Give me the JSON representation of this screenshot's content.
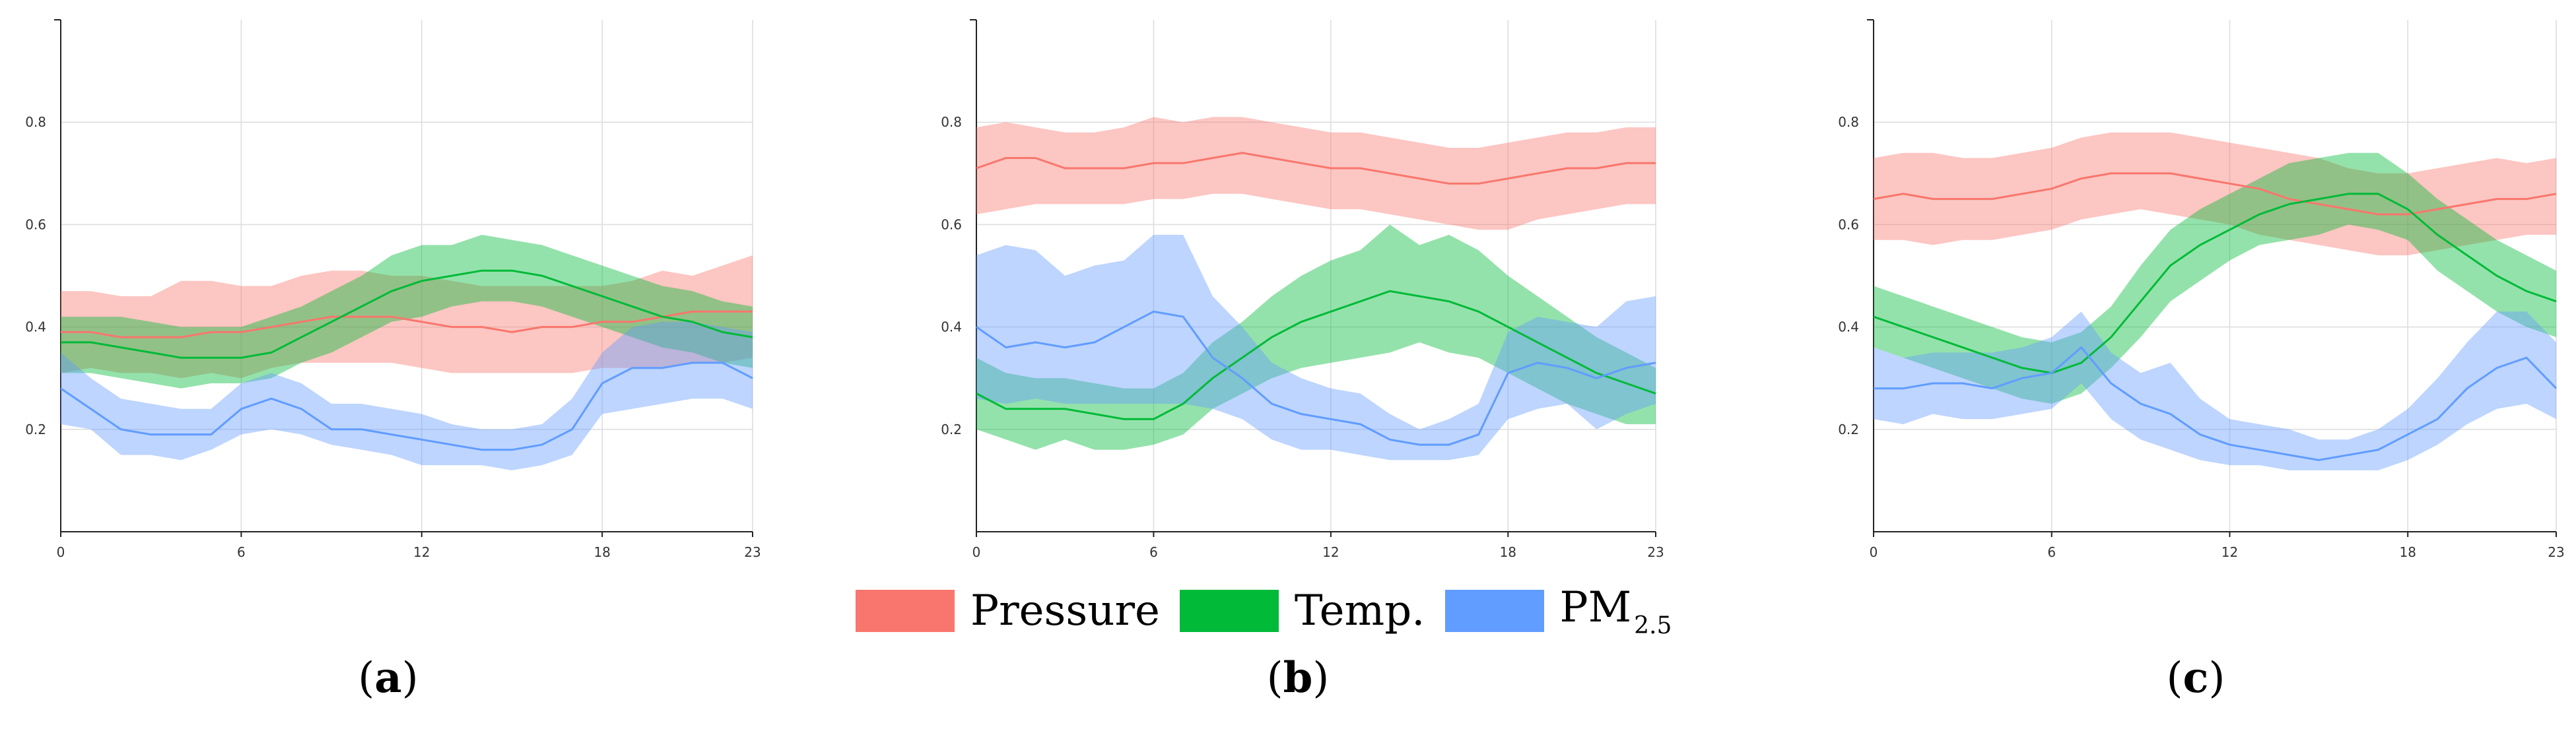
{
  "legend": {
    "pressure": {
      "label": "Pressure",
      "color": "#f8766d"
    },
    "temp": {
      "label": "Temp.",
      "color": "#00ba38"
    },
    "pm": {
      "label": "PM",
      "subscript": "2.5",
      "color": "#619cff"
    }
  },
  "chart_data": [
    {
      "type": "line",
      "panel_label": "a",
      "x": [
        0,
        1,
        2,
        3,
        4,
        5,
        6,
        7,
        8,
        9,
        10,
        11,
        12,
        13,
        14,
        15,
        16,
        17,
        18,
        19,
        20,
        21,
        22,
        23
      ],
      "xticks": [
        "0",
        "6",
        "12",
        "18",
        "23"
      ],
      "yticks": [
        "0.2",
        "0.4",
        "0.6",
        "0.8"
      ],
      "xlim": [
        0,
        23
      ],
      "ylim": [
        0,
        1
      ],
      "grid": true,
      "series": [
        {
          "name": "Pressure",
          "values": [
            0.39,
            0.39,
            0.38,
            0.38,
            0.38,
            0.39,
            0.39,
            0.4,
            0.41,
            0.42,
            0.42,
            0.42,
            0.41,
            0.4,
            0.4,
            0.39,
            0.4,
            0.4,
            0.41,
            0.41,
            0.42,
            0.43,
            0.43,
            0.43
          ],
          "lower": [
            0.31,
            0.32,
            0.31,
            0.31,
            0.3,
            0.31,
            0.3,
            0.32,
            0.33,
            0.33,
            0.33,
            0.33,
            0.32,
            0.31,
            0.31,
            0.31,
            0.31,
            0.31,
            0.32,
            0.32,
            0.32,
            0.33,
            0.33,
            0.34
          ],
          "upper": [
            0.47,
            0.47,
            0.46,
            0.46,
            0.49,
            0.49,
            0.48,
            0.48,
            0.5,
            0.51,
            0.51,
            0.5,
            0.5,
            0.49,
            0.48,
            0.48,
            0.48,
            0.48,
            0.48,
            0.49,
            0.51,
            0.5,
            0.52,
            0.54
          ]
        },
        {
          "name": "Temp.",
          "values": [
            0.37,
            0.37,
            0.36,
            0.35,
            0.34,
            0.34,
            0.34,
            0.35,
            0.38,
            0.41,
            0.44,
            0.47,
            0.49,
            0.5,
            0.51,
            0.51,
            0.5,
            0.48,
            0.46,
            0.44,
            0.42,
            0.41,
            0.39,
            0.38
          ],
          "lower": [
            0.31,
            0.31,
            0.3,
            0.29,
            0.28,
            0.29,
            0.29,
            0.3,
            0.33,
            0.35,
            0.38,
            0.41,
            0.42,
            0.44,
            0.45,
            0.45,
            0.44,
            0.42,
            0.4,
            0.38,
            0.36,
            0.35,
            0.33,
            0.32
          ],
          "upper": [
            0.42,
            0.42,
            0.42,
            0.41,
            0.4,
            0.4,
            0.4,
            0.42,
            0.44,
            0.47,
            0.5,
            0.54,
            0.56,
            0.56,
            0.58,
            0.57,
            0.56,
            0.54,
            0.52,
            0.5,
            0.48,
            0.47,
            0.45,
            0.44
          ]
        },
        {
          "name": "PM2.5",
          "values": [
            0.28,
            0.24,
            0.2,
            0.19,
            0.19,
            0.19,
            0.24,
            0.26,
            0.24,
            0.2,
            0.2,
            0.19,
            0.18,
            0.17,
            0.16,
            0.16,
            0.17,
            0.2,
            0.29,
            0.32,
            0.32,
            0.33,
            0.33,
            0.3
          ],
          "lower": [
            0.21,
            0.2,
            0.15,
            0.15,
            0.14,
            0.16,
            0.19,
            0.2,
            0.19,
            0.17,
            0.16,
            0.15,
            0.13,
            0.13,
            0.13,
            0.12,
            0.13,
            0.15,
            0.23,
            0.24,
            0.25,
            0.26,
            0.26,
            0.24
          ],
          "upper": [
            0.35,
            0.3,
            0.26,
            0.25,
            0.24,
            0.24,
            0.29,
            0.31,
            0.29,
            0.25,
            0.25,
            0.24,
            0.23,
            0.21,
            0.2,
            0.2,
            0.21,
            0.26,
            0.35,
            0.4,
            0.41,
            0.41,
            0.4,
            0.39
          ]
        }
      ]
    },
    {
      "type": "line",
      "panel_label": "b",
      "x": [
        0,
        1,
        2,
        3,
        4,
        5,
        6,
        7,
        8,
        9,
        10,
        11,
        12,
        13,
        14,
        15,
        16,
        17,
        18,
        19,
        20,
        21,
        22,
        23
      ],
      "xticks": [
        "0",
        "6",
        "12",
        "18",
        "23"
      ],
      "yticks": [
        "0.2",
        "0.4",
        "0.6",
        "0.8"
      ],
      "xlim": [
        0,
        23
      ],
      "ylim": [
        0,
        1
      ],
      "grid": true,
      "series": [
        {
          "name": "Pressure",
          "values": [
            0.71,
            0.73,
            0.73,
            0.71,
            0.71,
            0.71,
            0.72,
            0.72,
            0.73,
            0.74,
            0.73,
            0.72,
            0.71,
            0.71,
            0.7,
            0.69,
            0.68,
            0.68,
            0.69,
            0.7,
            0.71,
            0.71,
            0.72,
            0.72
          ],
          "lower": [
            0.62,
            0.63,
            0.64,
            0.64,
            0.64,
            0.64,
            0.65,
            0.65,
            0.66,
            0.66,
            0.65,
            0.64,
            0.63,
            0.63,
            0.62,
            0.61,
            0.6,
            0.59,
            0.59,
            0.61,
            0.62,
            0.63,
            0.64,
            0.64
          ],
          "upper": [
            0.79,
            0.8,
            0.79,
            0.78,
            0.78,
            0.79,
            0.81,
            0.8,
            0.81,
            0.81,
            0.8,
            0.79,
            0.78,
            0.78,
            0.77,
            0.76,
            0.75,
            0.75,
            0.76,
            0.77,
            0.78,
            0.78,
            0.79,
            0.79
          ]
        },
        {
          "name": "Temp.",
          "values": [
            0.27,
            0.24,
            0.24,
            0.24,
            0.23,
            0.22,
            0.22,
            0.25,
            0.3,
            0.34,
            0.38,
            0.41,
            0.43,
            0.45,
            0.47,
            0.46,
            0.45,
            0.43,
            0.4,
            0.37,
            0.34,
            0.31,
            0.29,
            0.27
          ],
          "lower": [
            0.2,
            0.18,
            0.16,
            0.18,
            0.16,
            0.16,
            0.17,
            0.19,
            0.24,
            0.27,
            0.3,
            0.32,
            0.33,
            0.34,
            0.35,
            0.37,
            0.35,
            0.34,
            0.31,
            0.28,
            0.25,
            0.23,
            0.21,
            0.21
          ],
          "upper": [
            0.34,
            0.31,
            0.3,
            0.3,
            0.29,
            0.28,
            0.28,
            0.31,
            0.37,
            0.41,
            0.46,
            0.5,
            0.53,
            0.55,
            0.6,
            0.56,
            0.58,
            0.55,
            0.5,
            0.46,
            0.42,
            0.38,
            0.35,
            0.32
          ]
        },
        {
          "name": "PM2.5",
          "values": [
            0.4,
            0.36,
            0.37,
            0.36,
            0.37,
            0.4,
            0.43,
            0.42,
            0.34,
            0.3,
            0.25,
            0.23,
            0.22,
            0.21,
            0.18,
            0.17,
            0.17,
            0.19,
            0.31,
            0.33,
            0.32,
            0.3,
            0.32,
            0.33
          ],
          "lower": [
            0.26,
            0.25,
            0.26,
            0.25,
            0.25,
            0.25,
            0.25,
            0.25,
            0.24,
            0.22,
            0.18,
            0.16,
            0.16,
            0.15,
            0.14,
            0.14,
            0.14,
            0.15,
            0.22,
            0.24,
            0.25,
            0.2,
            0.23,
            0.25
          ],
          "upper": [
            0.54,
            0.56,
            0.55,
            0.5,
            0.52,
            0.53,
            0.58,
            0.58,
            0.46,
            0.4,
            0.33,
            0.3,
            0.28,
            0.27,
            0.23,
            0.2,
            0.22,
            0.25,
            0.39,
            0.42,
            0.41,
            0.4,
            0.45,
            0.46
          ]
        }
      ]
    },
    {
      "type": "line",
      "panel_label": "c",
      "x": [
        0,
        1,
        2,
        3,
        4,
        5,
        6,
        7,
        8,
        9,
        10,
        11,
        12,
        13,
        14,
        15,
        16,
        17,
        18,
        19,
        20,
        21,
        22,
        23
      ],
      "xticks": [
        "0",
        "6",
        "12",
        "18",
        "23"
      ],
      "yticks": [
        "0.2",
        "0.4",
        "0.6",
        "0.8"
      ],
      "xlim": [
        0,
        23
      ],
      "ylim": [
        0,
        1
      ],
      "grid": true,
      "series": [
        {
          "name": "Pressure",
          "values": [
            0.65,
            0.66,
            0.65,
            0.65,
            0.65,
            0.66,
            0.67,
            0.69,
            0.7,
            0.7,
            0.7,
            0.69,
            0.68,
            0.67,
            0.65,
            0.64,
            0.63,
            0.62,
            0.62,
            0.63,
            0.64,
            0.65,
            0.65,
            0.66
          ],
          "lower": [
            0.57,
            0.57,
            0.56,
            0.57,
            0.57,
            0.58,
            0.59,
            0.61,
            0.62,
            0.63,
            0.62,
            0.61,
            0.6,
            0.58,
            0.57,
            0.56,
            0.55,
            0.54,
            0.54,
            0.55,
            0.56,
            0.57,
            0.58,
            0.58
          ],
          "upper": [
            0.73,
            0.74,
            0.74,
            0.73,
            0.73,
            0.74,
            0.75,
            0.77,
            0.78,
            0.78,
            0.78,
            0.77,
            0.76,
            0.75,
            0.74,
            0.73,
            0.71,
            0.7,
            0.7,
            0.71,
            0.72,
            0.73,
            0.72,
            0.73
          ]
        },
        {
          "name": "Temp.",
          "values": [
            0.42,
            0.4,
            0.38,
            0.36,
            0.34,
            0.32,
            0.31,
            0.33,
            0.38,
            0.45,
            0.52,
            0.56,
            0.59,
            0.62,
            0.64,
            0.65,
            0.66,
            0.66,
            0.63,
            0.58,
            0.54,
            0.5,
            0.47,
            0.45
          ],
          "lower": [
            0.36,
            0.34,
            0.32,
            0.3,
            0.28,
            0.26,
            0.25,
            0.27,
            0.32,
            0.38,
            0.45,
            0.49,
            0.53,
            0.56,
            0.57,
            0.58,
            0.6,
            0.59,
            0.57,
            0.51,
            0.47,
            0.43,
            0.4,
            0.38
          ],
          "upper": [
            0.48,
            0.46,
            0.44,
            0.42,
            0.4,
            0.38,
            0.37,
            0.39,
            0.44,
            0.52,
            0.59,
            0.63,
            0.66,
            0.69,
            0.72,
            0.73,
            0.74,
            0.74,
            0.7,
            0.65,
            0.61,
            0.57,
            0.54,
            0.51
          ]
        },
        {
          "name": "PM2.5",
          "values": [
            0.28,
            0.28,
            0.29,
            0.29,
            0.28,
            0.3,
            0.31,
            0.36,
            0.29,
            0.25,
            0.23,
            0.19,
            0.17,
            0.16,
            0.15,
            0.14,
            0.15,
            0.16,
            0.19,
            0.22,
            0.28,
            0.32,
            0.34,
            0.28
          ],
          "lower": [
            0.22,
            0.21,
            0.23,
            0.22,
            0.22,
            0.23,
            0.24,
            0.29,
            0.22,
            0.18,
            0.16,
            0.14,
            0.13,
            0.13,
            0.12,
            0.12,
            0.12,
            0.12,
            0.14,
            0.17,
            0.21,
            0.24,
            0.25,
            0.22
          ],
          "upper": [
            0.36,
            0.34,
            0.35,
            0.35,
            0.35,
            0.36,
            0.38,
            0.43,
            0.35,
            0.31,
            0.33,
            0.26,
            0.22,
            0.21,
            0.2,
            0.18,
            0.18,
            0.2,
            0.24,
            0.3,
            0.37,
            0.43,
            0.43,
            0.37
          ]
        }
      ]
    }
  ]
}
